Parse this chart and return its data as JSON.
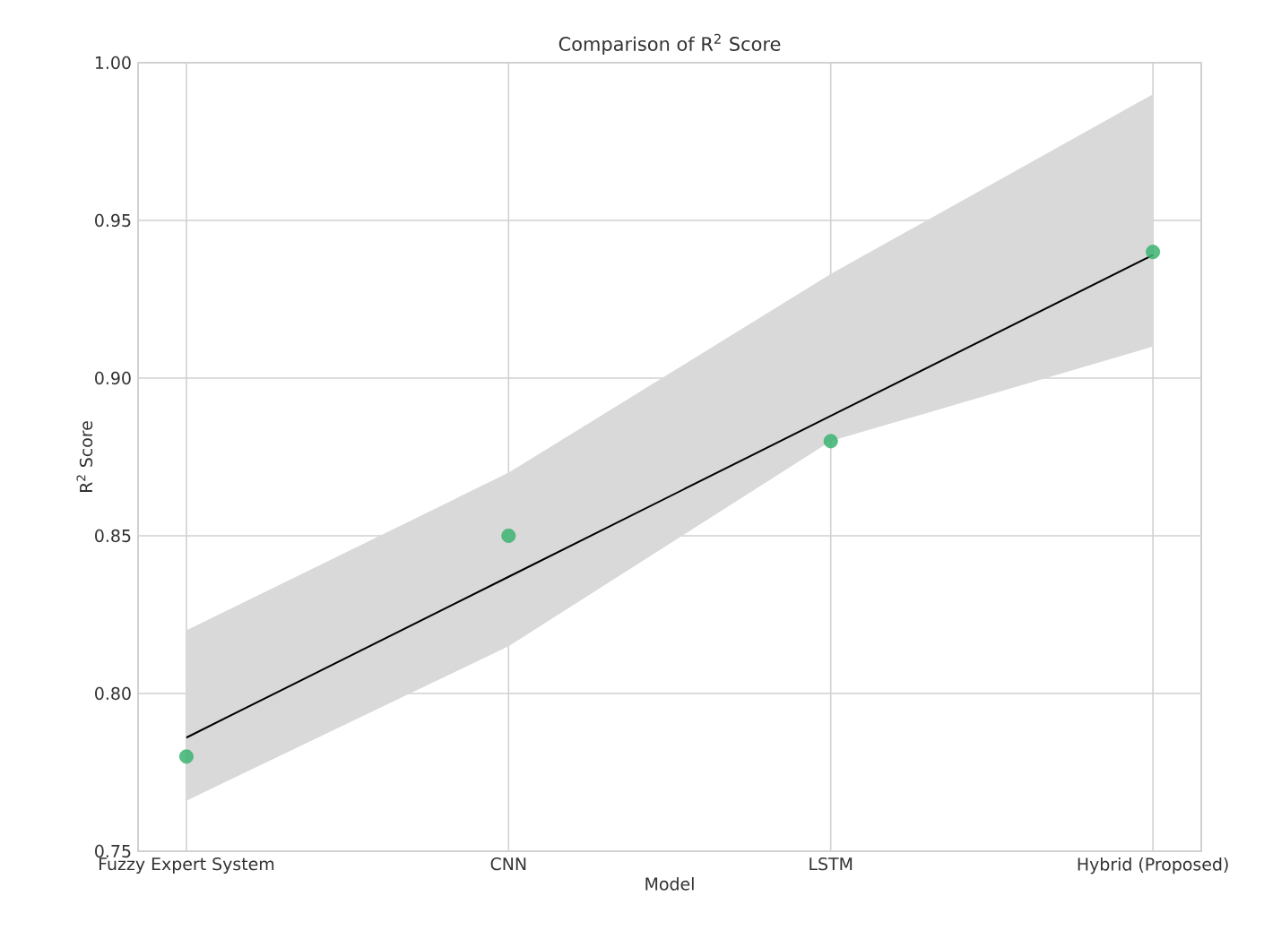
{
  "chart_data": {
    "type": "scatter",
    "title": "Comparison of R$^{2}$ Score",
    "xlabel": "Model",
    "ylabel": "R$^{2}$ Score",
    "categories": [
      "Fuzzy Expert System",
      "CNN",
      "LSTM",
      "Hybrid (Proposed)"
    ],
    "series": [
      {
        "color": "#3cb371",
        "marker": "circle",
        "values": [
          0.78,
          0.85,
          0.88,
          0.94
        ]
      },
      {
        "type": "line",
        "color": "#000000",
        "values": [
          0.786,
          0.837,
          0.888,
          0.939
        ],
        "lower": [
          0.766,
          0.815,
          0.88,
          0.91
        ],
        "upper": [
          0.82,
          0.87,
          0.933,
          0.99
        ]
      }
    ],
    "ylim": [
      0.75,
      1.0
    ],
    "yticks": [
      0.75,
      {
        "value": 0.8,
        "label": "0.80"
      },
      0.85,
      {
        "value": 0.9,
        "label": "0.90"
      },
      0.95,
      {
        "value": 1.0,
        "label": "1.00"
      }
    ],
    "grid": true
  }
}
